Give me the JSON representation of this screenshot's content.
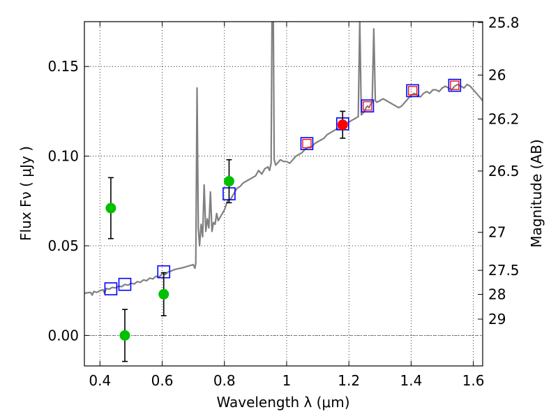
{
  "chart_data": {
    "type": "scatter",
    "title": "",
    "xlabel": "Wavelength  λ (μm)",
    "ylabel": "Flux  Fν  ( μJy )",
    "right_ylabel": "Magnitude (AB)",
    "xlim": [
      0.35,
      1.63
    ],
    "ylim": [
      -0.017,
      0.175
    ],
    "grid": true,
    "x_ticks": [
      {
        "value": 0.4,
        "label": "0.4"
      },
      {
        "value": 0.6,
        "label": "0.6"
      },
      {
        "value": 0.8,
        "label": "0.8"
      },
      {
        "value": 1.0,
        "label": "1"
      },
      {
        "value": 1.2,
        "label": "1.2"
      },
      {
        "value": 1.4,
        "label": "1.4"
      },
      {
        "value": 1.6,
        "label": "1.6"
      }
    ],
    "y_ticks": [
      {
        "value": 0.0,
        "label": "0.00"
      },
      {
        "value": 0.05,
        "label": "0.05"
      },
      {
        "value": 0.1,
        "label": "0.10"
      },
      {
        "value": 0.15,
        "label": "0.15"
      }
    ],
    "right_ticks": [
      {
        "flux": 0.1745,
        "label": "25.8"
      },
      {
        "flux": 0.1452,
        "label": "26"
      },
      {
        "flux": 0.1207,
        "label": "26.2"
      },
      {
        "flux": 0.0917,
        "label": "26.5"
      },
      {
        "flux": 0.0575,
        "label": "27"
      },
      {
        "flux": 0.0363,
        "label": "27.5"
      },
      {
        "flux": 0.0229,
        "label": "28"
      },
      {
        "flux": 0.0091,
        "label": "29"
      }
    ],
    "hline": 0.0,
    "series": [
      {
        "name": "model spectrum",
        "style": "line",
        "color": "#808080",
        "points": [
          [
            0.35,
            0.0235
          ],
          [
            0.36,
            0.0238
          ],
          [
            0.37,
            0.024
          ],
          [
            0.375,
            0.0225
          ],
          [
            0.38,
            0.0245
          ],
          [
            0.39,
            0.024
          ],
          [
            0.4,
            0.025
          ],
          [
            0.41,
            0.0255
          ],
          [
            0.415,
            0.0235
          ],
          [
            0.42,
            0.0262
          ],
          [
            0.43,
            0.0258
          ],
          [
            0.44,
            0.0268
          ],
          [
            0.45,
            0.0265
          ],
          [
            0.46,
            0.0275
          ],
          [
            0.47,
            0.0272
          ],
          [
            0.48,
            0.0285
          ],
          [
            0.49,
            0.028
          ],
          [
            0.5,
            0.0292
          ],
          [
            0.51,
            0.0287
          ],
          [
            0.52,
            0.03
          ],
          [
            0.53,
            0.0296
          ],
          [
            0.54,
            0.031
          ],
          [
            0.55,
            0.0305
          ],
          [
            0.56,
            0.032
          ],
          [
            0.57,
            0.0315
          ],
          [
            0.58,
            0.033
          ],
          [
            0.59,
            0.0325
          ],
          [
            0.6,
            0.0345
          ],
          [
            0.61,
            0.034
          ],
          [
            0.62,
            0.0355
          ],
          [
            0.63,
            0.036
          ],
          [
            0.64,
            0.0368
          ],
          [
            0.65,
            0.0372
          ],
          [
            0.66,
            0.0375
          ],
          [
            0.67,
            0.038
          ],
          [
            0.68,
            0.0385
          ],
          [
            0.69,
            0.039
          ],
          [
            0.7,
            0.0395
          ],
          [
            0.705,
            0.0375
          ],
          [
            0.708,
            0.04
          ],
          [
            0.712,
            0.138
          ],
          [
            0.716,
            0.06
          ],
          [
            0.72,
            0.05
          ],
          [
            0.725,
            0.062
          ],
          [
            0.73,
            0.055
          ],
          [
            0.735,
            0.084
          ],
          [
            0.74,
            0.058
          ],
          [
            0.745,
            0.065
          ],
          [
            0.75,
            0.06
          ],
          [
            0.755,
            0.08
          ],
          [
            0.76,
            0.058
          ],
          [
            0.765,
            0.063
          ],
          [
            0.77,
            0.062
          ],
          [
            0.775,
            0.068
          ],
          [
            0.78,
            0.064
          ],
          [
            0.79,
            0.067
          ],
          [
            0.8,
            0.07
          ],
          [
            0.81,
            0.075
          ],
          [
            0.82,
            0.076
          ],
          [
            0.83,
            0.079
          ],
          [
            0.84,
            0.082
          ],
          [
            0.85,
            0.083
          ],
          [
            0.86,
            0.085
          ],
          [
            0.87,
            0.086
          ],
          [
            0.88,
            0.087
          ],
          [
            0.89,
            0.088
          ],
          [
            0.9,
            0.089
          ],
          [
            0.91,
            0.092
          ],
          [
            0.92,
            0.09
          ],
          [
            0.93,
            0.093
          ],
          [
            0.94,
            0.094
          ],
          [
            0.945,
            0.092
          ],
          [
            0.95,
            0.096
          ],
          [
            0.953,
            0.18
          ],
          [
            0.957,
            0.18
          ],
          [
            0.96,
            0.098
          ],
          [
            0.965,
            0.095
          ],
          [
            0.97,
            0.096
          ],
          [
            0.98,
            0.098
          ],
          [
            0.99,
            0.097
          ],
          [
            1.0,
            0.097
          ],
          [
            1.01,
            0.096
          ],
          [
            1.02,
            0.098
          ],
          [
            1.03,
            0.1
          ],
          [
            1.04,
            0.101
          ],
          [
            1.05,
            0.102
          ],
          [
            1.06,
            0.104
          ],
          [
            1.07,
            0.105
          ],
          [
            1.08,
            0.105
          ],
          [
            1.09,
            0.107
          ],
          [
            1.1,
            0.108
          ],
          [
            1.11,
            0.109
          ],
          [
            1.12,
            0.11
          ],
          [
            1.13,
            0.112
          ],
          [
            1.14,
            0.113
          ],
          [
            1.15,
            0.114
          ],
          [
            1.16,
            0.115
          ],
          [
            1.17,
            0.116
          ],
          [
            1.18,
            0.117
          ],
          [
            1.19,
            0.118
          ],
          [
            1.2,
            0.119
          ],
          [
            1.21,
            0.12
          ],
          [
            1.22,
            0.121
          ],
          [
            1.23,
            0.122
          ],
          [
            1.235,
            0.176
          ],
          [
            1.24,
            0.123
          ],
          [
            1.245,
            0.124
          ],
          [
            1.25,
            0.125
          ],
          [
            1.255,
            0.127
          ],
          [
            1.26,
            0.128
          ],
          [
            1.265,
            0.127
          ],
          [
            1.27,
            0.129
          ],
          [
            1.275,
            0.13
          ],
          [
            1.28,
            0.171
          ],
          [
            1.285,
            0.131
          ],
          [
            1.29,
            0.13
          ],
          [
            1.3,
            0.131
          ],
          [
            1.31,
            0.132
          ],
          [
            1.32,
            0.131
          ],
          [
            1.33,
            0.13
          ],
          [
            1.34,
            0.129
          ],
          [
            1.35,
            0.128
          ],
          [
            1.36,
            0.127
          ],
          [
            1.37,
            0.128
          ],
          [
            1.38,
            0.13
          ],
          [
            1.39,
            0.132
          ],
          [
            1.4,
            0.134
          ],
          [
            1.41,
            0.135
          ],
          [
            1.42,
            0.134
          ],
          [
            1.43,
            0.133
          ],
          [
            1.44,
            0.135
          ],
          [
            1.45,
            0.136
          ],
          [
            1.46,
            0.135
          ],
          [
            1.47,
            0.137
          ],
          [
            1.48,
            0.137
          ],
          [
            1.49,
            0.136
          ],
          [
            1.5,
            0.138
          ],
          [
            1.51,
            0.139
          ],
          [
            1.52,
            0.138
          ],
          [
            1.53,
            0.137
          ],
          [
            1.54,
            0.139
          ],
          [
            1.55,
            0.14
          ],
          [
            1.56,
            0.139
          ],
          [
            1.57,
            0.138
          ],
          [
            1.58,
            0.14
          ],
          [
            1.59,
            0.139
          ],
          [
            1.6,
            0.137
          ],
          [
            1.61,
            0.135
          ],
          [
            1.62,
            0.133
          ],
          [
            1.63,
            0.131
          ]
        ]
      },
      {
        "name": "model photometry (blue squares)",
        "style": "square-open",
        "color": "#0000ff",
        "points": [
          [
            0.435,
            0.026
          ],
          [
            0.48,
            0.0285
          ],
          [
            0.605,
            0.0355
          ],
          [
            0.815,
            0.079
          ],
          [
            1.065,
            0.107
          ],
          [
            1.18,
            0.118
          ],
          [
            1.26,
            0.128
          ],
          [
            1.405,
            0.1365
          ],
          [
            1.54,
            0.1395
          ]
        ]
      },
      {
        "name": "model photometry (red squares)",
        "style": "square-open",
        "color": "#ff0000",
        "points": [
          [
            1.065,
            0.107
          ],
          [
            1.26,
            0.128
          ],
          [
            1.405,
            0.1365
          ],
          [
            1.54,
            0.1395
          ]
        ]
      },
      {
        "name": "observed (green)",
        "style": "circle-filled",
        "color": "#00c000",
        "points": [
          [
            0.435,
            0.071
          ],
          [
            0.48,
            0.0
          ],
          [
            0.605,
            0.023
          ],
          [
            0.815,
            0.086
          ]
        ],
        "errors": [
          0.017,
          0.0145,
          0.012,
          0.012
        ]
      },
      {
        "name": "observed (red)",
        "style": "circle-filled",
        "color": "#ff0000",
        "points": [
          [
            1.18,
            0.1175
          ]
        ],
        "errors": [
          0.0075
        ]
      }
    ]
  }
}
